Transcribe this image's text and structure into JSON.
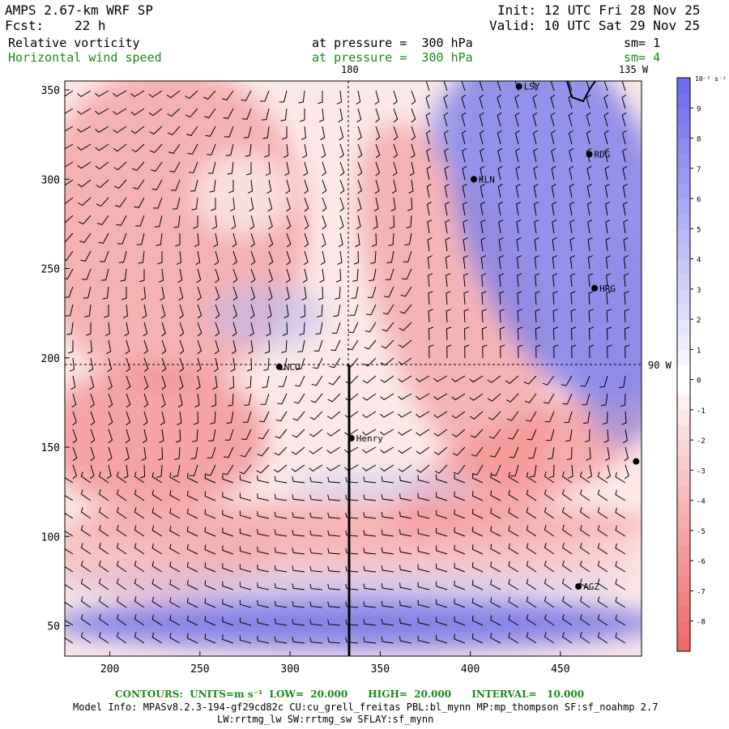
{
  "header": {
    "model": "AMPS 2.67-km WRF SP",
    "init": "Init: 12 UTC Fri 28 Nov 25",
    "fcst_label": "Fcst:",
    "fcst_value": "22 h",
    "valid": "Valid: 10 UTC Sat 29 Nov 25",
    "field1": "Relative vorticity",
    "field1_level": "at pressure =  300 hPa",
    "field1_sm": "sm= 1",
    "field2": "Horizontal wind speed",
    "field2_level": "at pressure =  300 hPa",
    "field2_sm": "sm= 4"
  },
  "colors": {
    "positive": "#6a6ae8",
    "negative": "#f06060",
    "neutral": "#ffffff",
    "green_text": "#1a8a1a",
    "barb": "#000000"
  },
  "map_labels": {
    "lon_180": "180",
    "lon_135w": "135 W",
    "lon_90w": "90 W"
  },
  "stations": [
    {
      "name": "LSY",
      "x": 427,
      "y": 352
    },
    {
      "name": "RDG",
      "x": 466,
      "y": 314
    },
    {
      "name": "KLN",
      "x": 402,
      "y": 300
    },
    {
      "name": "HRG",
      "x": 469,
      "y": 239
    },
    {
      "name": "NCO",
      "x": 294,
      "y": 195
    },
    {
      "name": "Henry",
      "x": 334,
      "y": 155
    },
    {
      "name": "",
      "x": 492,
      "y": 142
    },
    {
      "name": "AGZ",
      "x": 460,
      "y": 72
    }
  ],
  "chart_data": {
    "type": "heatmap",
    "title": "Relative vorticity / Horizontal wind speed at 300 hPa",
    "units": "10^-5 s^-1",
    "colorbar_units_label": "10⁻⁵ s⁻¹",
    "xlim": [
      175,
      495
    ],
    "ylim": [
      33,
      355
    ],
    "x_ticks": [
      200,
      250,
      300,
      350,
      400,
      450
    ],
    "y_ticks": [
      50,
      100,
      150,
      200,
      250,
      300,
      350
    ],
    "colorbar_ticks": [
      9,
      8,
      7,
      6,
      5,
      4,
      3,
      2,
      1,
      0,
      -1,
      -2,
      -3,
      -4,
      -5,
      -6,
      -7,
      -8
    ],
    "colorbar_range": [
      -9,
      10
    ],
    "cross_section": {
      "x": 334,
      "y_from": 33,
      "y_to": 195
    },
    "guide_lon_180_x": 333,
    "guide_lat_y": 195,
    "features": [
      {
        "label": "upper-right cyclonic band",
        "sign": "positive",
        "center": [
          450,
          300
        ]
      },
      {
        "label": "southern jet band",
        "sign": "positive",
        "center": [
          330,
          50
        ]
      },
      {
        "label": "western anticyclonic region",
        "sign": "negative",
        "center": [
          230,
          180
        ]
      },
      {
        "label": "southeast negative band",
        "sign": "negative",
        "center": [
          430,
          140
        ]
      }
    ]
  },
  "footer": {
    "contours": "CONTOURS:  UNITS=m s⁻¹  LOW=  20.000      HIGH=  20.000      INTERVAL=   10.000",
    "model_info": "Model Info: MPASv8.2.3-194-gf29cd82c CU:cu_grell_freitas PBL:bl_mynn MP:mp_thompson SF:sf_noahmp 2.7",
    "model_info2": "LW:rrtmg_lw SW:rrtmg_sw SFLAY:sf_mynn"
  }
}
